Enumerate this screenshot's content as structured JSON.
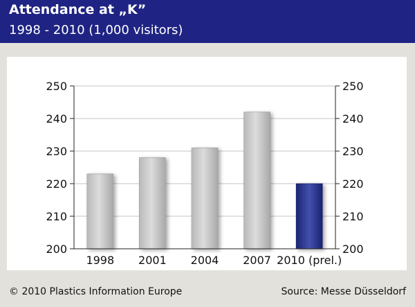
{
  "header": {
    "title": "Attendance at „K”",
    "subtitle": "1998 - 2010 (1,000 visitors)"
  },
  "footer": {
    "copyright": "© 2010 Plastics Information Europe",
    "source": "Source: Messe Düsseldorf"
  },
  "colors": {
    "header_bg": "#1f2383",
    "page_bg": "#e3e1db",
    "bar_gray": "#c8c8c8",
    "bar_highlight": "#27318e"
  },
  "chart_data": {
    "type": "bar",
    "categories": [
      "1998",
      "2001",
      "2004",
      "2007",
      "2010 (prel.)"
    ],
    "values": [
      223,
      228,
      231,
      242,
      220
    ],
    "highlight_index": 4,
    "title": "Attendance at „K”",
    "subtitle": "1998 - 2010 (1,000 visitors)",
    "ylim": [
      200,
      250
    ],
    "yticks": [
      200,
      210,
      220,
      230,
      240,
      250
    ],
    "grid": true,
    "secondary_y_axis": true
  }
}
